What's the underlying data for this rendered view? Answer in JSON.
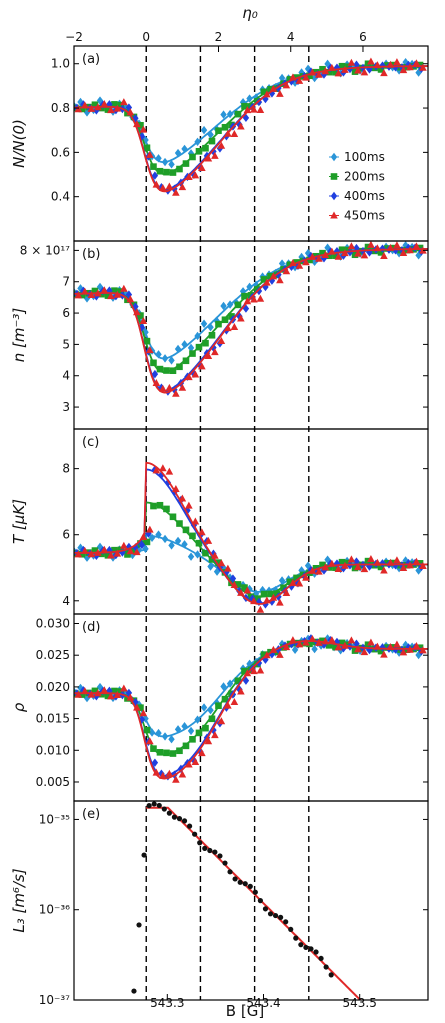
{
  "chart_data": {
    "type": "scatter",
    "top_axis": {
      "label": "η₀",
      "ticks": [
        -2,
        0,
        2,
        4,
        6
      ],
      "range": [
        -2,
        7.8
      ]
    },
    "bottom_axis": {
      "label": "B [G]",
      "ticks": [
        "543.3",
        "543.4",
        "543.5"
      ],
      "range": [
        543.203,
        543.571
      ]
    },
    "dashed_lines_eta0": [
      0,
      1.5,
      3.0,
      4.5
    ],
    "legend": {
      "placement": "right",
      "entries": [
        {
          "name": "100ms",
          "color": "#2a95d8",
          "marker": "diamond"
        },
        {
          "name": "200ms",
          "color": "#1e9e28",
          "marker": "square"
        },
        {
          "name": "400ms",
          "color": "#2040e0",
          "marker": "diamond"
        },
        {
          "name": "450ms",
          "color": "#e02828",
          "marker": "triangle"
        }
      ]
    },
    "series": [
      {
        "name": "100ms",
        "color": "#2a95d8",
        "amp": 0.85,
        "tail": 0.95,
        "tmax": 6.0,
        "rmin": 0.0115
      },
      {
        "name": "200ms",
        "color": "#1e9e28",
        "amp": 1.0,
        "tail": 0.82,
        "tmax": 7.0,
        "rmin": 0.0085
      },
      {
        "name": "400ms",
        "color": "#2040e0",
        "amp": 1.2,
        "tail": 0.6,
        "tmax": 8.0,
        "rmin": 0.005
      },
      {
        "name": "450ms",
        "color": "#e02828",
        "amp": 1.22,
        "tail": 0.58,
        "tmax": 8.2,
        "rmin": 0.0045
      }
    ],
    "panels": [
      {
        "id": "a",
        "label": "(a)",
        "ylabel": "N/N(0)",
        "ylim": [
          0.2,
          1.08
        ],
        "yticks": [
          {
            "v": 0.4,
            "t": "0.4"
          },
          {
            "v": 0.6,
            "t": "0.6"
          },
          {
            "v": 0.8,
            "t": "0.8"
          },
          {
            "v": 1.0,
            "t": "1.0"
          }
        ],
        "quantity": "N",
        "pre": 0.8,
        "post": 0.99,
        "min400": 0.34,
        "min100": 0.58
      },
      {
        "id": "b",
        "label": "(b)",
        "ylabel": "n [m⁻³]",
        "ylim": [
          2.3,
          8.3
        ],
        "yticks": [
          {
            "v": 3,
            "t": "3"
          },
          {
            "v": 4,
            "t": "4"
          },
          {
            "v": 5,
            "t": "5"
          },
          {
            "v": 6,
            "t": "6"
          },
          {
            "v": 7,
            "t": "7"
          },
          {
            "v": 8,
            "t": "8 × 10¹⁷"
          }
        ],
        "quantity": "n",
        "pre": 6.6,
        "post": 8.05,
        "min400": 2.8,
        "min100": 4.9
      },
      {
        "id": "c",
        "label": "(c)",
        "ylabel": "T [μK]",
        "ylim": [
          3.6,
          9.2
        ],
        "yticks": [
          {
            "v": 4,
            "t": "4"
          },
          {
            "v": 6,
            "t": "6"
          },
          {
            "v": 8,
            "t": "8"
          }
        ],
        "quantity": "T",
        "pre": 5.45,
        "post": 5.1,
        "tmin": 4.1
      },
      {
        "id": "d",
        "label": "(d)",
        "ylabel": "ρ",
        "ylim": [
          0.002,
          0.0315
        ],
        "yticks": [
          {
            "v": 0.005,
            "t": "0.005"
          },
          {
            "v": 0.01,
            "t": "0.010"
          },
          {
            "v": 0.015,
            "t": "0.015"
          },
          {
            "v": 0.02,
            "t": "0.020"
          },
          {
            "v": 0.025,
            "t": "0.025"
          },
          {
            "v": 0.03,
            "t": "0.030"
          }
        ],
        "quantity": "rho",
        "pre": 0.019,
        "post": 0.026
      },
      {
        "id": "e",
        "label": "(e)",
        "ylabel": "L₃ [m⁶/s]",
        "scale": "log",
        "ylim": [
          1e-37,
          1.6e-35
        ],
        "yticks": [
          {
            "v": 1e-37,
            "t": "10⁻³⁷"
          },
          {
            "v": 1e-36,
            "t": "10⁻³⁶"
          },
          {
            "v": 1e-35,
            "t": "10⁻³⁵"
          }
        ],
        "quantity": "L3",
        "peak": 1.35e-35,
        "points_color": "#111111",
        "fit_color": "#e02828"
      }
    ]
  }
}
